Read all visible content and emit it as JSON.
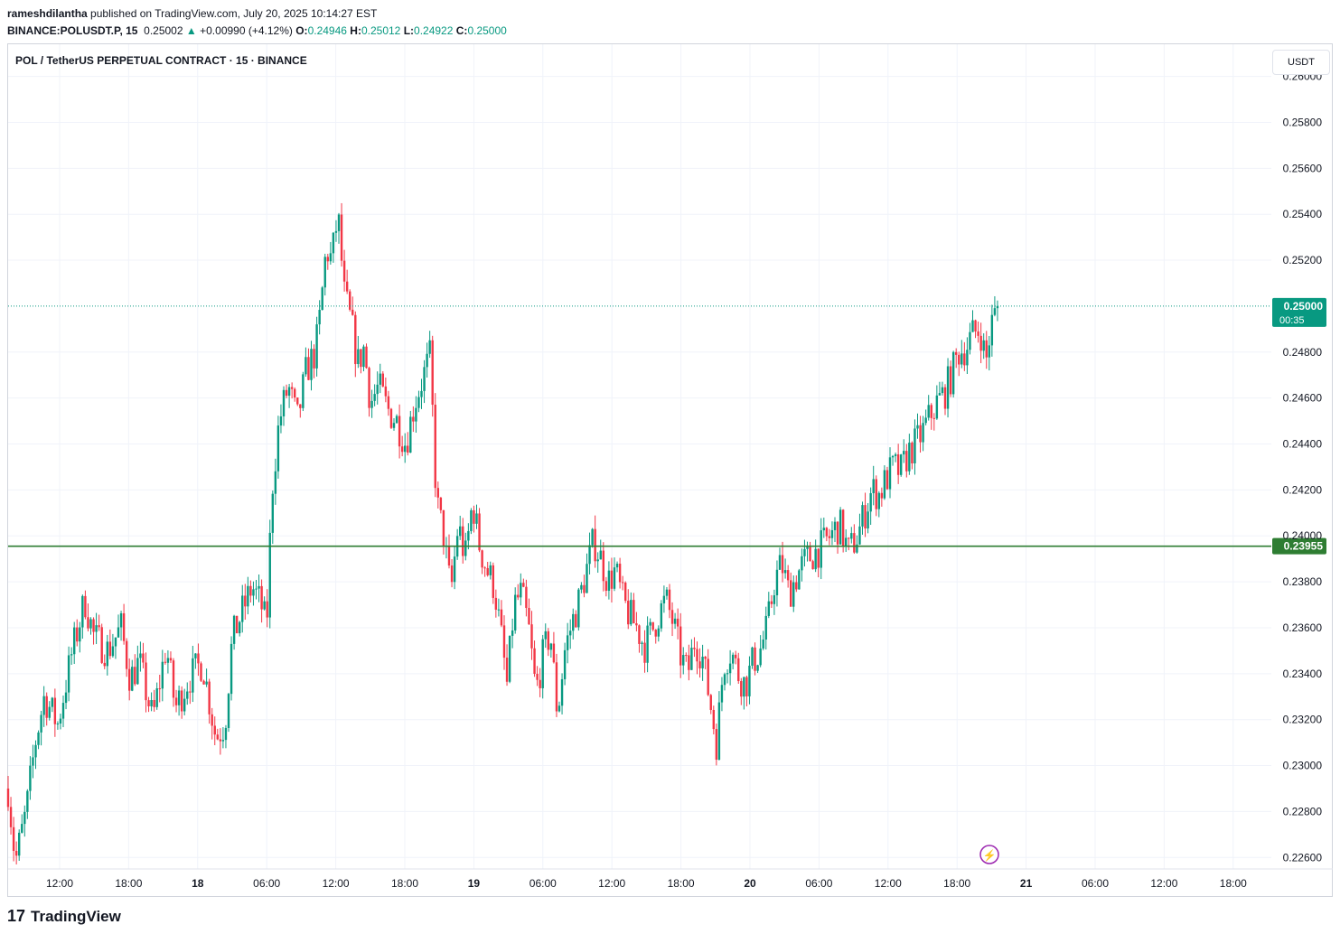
{
  "header": {
    "author": "rameshdilantha",
    "published": "published on TradingView.com, July 20, 2025 10:14:27 EST",
    "symbol": "BINANCE:POLUSDT.P, 15",
    "last": "0.25002",
    "change": "+0.00990 (+4.12%)",
    "o_label": "O:",
    "o": "0.24946",
    "h_label": "H:",
    "h": "0.25012",
    "l_label": "L:",
    "l": "0.24922",
    "c_label": "C:",
    "c": "0.25000"
  },
  "legend_title": "POL / TetherUS PERPETUAL CONTRACT · 15 · BINANCE",
  "currency_button": "USDT",
  "price_label": {
    "value": "0.25000",
    "countdown": "00:35"
  },
  "line_label": "0.23955",
  "footer": {
    "brand": "TradingView",
    "logo_glyph": "17"
  },
  "colors": {
    "up": "#089981",
    "down": "#f23645",
    "line": "#2e7d32",
    "grid": "#f0f3fa",
    "axis_text": "#131722"
  },
  "chart_data": {
    "type": "candlestick",
    "yticks": [
      "0.26000",
      "0.25800",
      "0.25600",
      "0.25400",
      "0.25200",
      "0.24800",
      "0.24600",
      "0.24400",
      "0.24200",
      "0.24000",
      "0.23800",
      "0.23600",
      "0.23400",
      "0.23200",
      "0.23000",
      "0.22800",
      "0.22600"
    ],
    "xticks": [
      "12:00",
      "18:00",
      "18",
      "06:00",
      "12:00",
      "18:00",
      "19",
      "06:00",
      "12:00",
      "18:00",
      "20",
      "06:00",
      "12:00",
      "18:00",
      "21",
      "06:00",
      "12:00",
      "18:00"
    ],
    "ylim": [
      0.2255,
      0.2614
    ],
    "horizontal_line": 0.23955,
    "last_price": 0.25,
    "path_close": [
      [
        0,
        0.229
      ],
      [
        8,
        0.2258
      ],
      [
        20,
        0.228
      ],
      [
        30,
        0.231
      ],
      [
        40,
        0.233
      ],
      [
        55,
        0.2318
      ],
      [
        70,
        0.2348
      ],
      [
        85,
        0.2372
      ],
      [
        95,
        0.2356
      ],
      [
        110,
        0.235
      ],
      [
        125,
        0.236
      ],
      [
        135,
        0.2338
      ],
      [
        145,
        0.2345
      ],
      [
        160,
        0.232
      ],
      [
        175,
        0.2352
      ],
      [
        185,
        0.2325
      ],
      [
        200,
        0.2338
      ],
      [
        215,
        0.2345
      ],
      [
        230,
        0.2312
      ],
      [
        240,
        0.2318
      ],
      [
        248,
        0.2355
      ],
      [
        260,
        0.2368
      ],
      [
        270,
        0.2378
      ],
      [
        280,
        0.237
      ],
      [
        286,
        0.236
      ],
      [
        292,
        0.242
      ],
      [
        300,
        0.245
      ],
      [
        310,
        0.2465
      ],
      [
        320,
        0.245
      ],
      [
        330,
        0.2472
      ],
      [
        340,
        0.248
      ],
      [
        345,
        0.2495
      ],
      [
        352,
        0.2525
      ],
      [
        358,
        0.252
      ],
      [
        365,
        0.254
      ],
      [
        372,
        0.2505
      ],
      [
        380,
        0.2492
      ],
      [
        387,
        0.2475
      ],
      [
        394,
        0.2482
      ],
      [
        401,
        0.2458
      ],
      [
        410,
        0.2465
      ],
      [
        420,
        0.2455
      ],
      [
        430,
        0.245
      ],
      [
        440,
        0.244
      ],
      [
        450,
        0.2458
      ],
      [
        460,
        0.247
      ],
      [
        467,
        0.2478
      ],
      [
        474,
        0.2415
      ],
      [
        482,
        0.24
      ],
      [
        490,
        0.2375
      ],
      [
        498,
        0.2405
      ],
      [
        506,
        0.239
      ],
      [
        514,
        0.2415
      ],
      [
        522,
        0.2395
      ],
      [
        530,
        0.2385
      ],
      [
        538,
        0.2378
      ],
      [
        546,
        0.2355
      ],
      [
        552,
        0.2335
      ],
      [
        560,
        0.237
      ],
      [
        568,
        0.2375
      ],
      [
        576,
        0.236
      ],
      [
        584,
        0.2332
      ],
      [
        592,
        0.2348
      ],
      [
        600,
        0.2358
      ],
      [
        608,
        0.2322
      ],
      [
        616,
        0.235
      ],
      [
        624,
        0.2362
      ],
      [
        632,
        0.2372
      ],
      [
        640,
        0.2385
      ],
      [
        648,
        0.2398
      ],
      [
        656,
        0.239
      ],
      [
        664,
        0.238
      ],
      [
        672,
        0.2385
      ],
      [
        680,
        0.2372
      ],
      [
        688,
        0.2365
      ],
      [
        696,
        0.236
      ],
      [
        704,
        0.2352
      ],
      [
        712,
        0.2358
      ],
      [
        720,
        0.2366
      ],
      [
        728,
        0.2372
      ],
      [
        736,
        0.2362
      ],
      [
        744,
        0.2348
      ],
      [
        752,
        0.234
      ],
      [
        760,
        0.2355
      ],
      [
        768,
        0.2348
      ],
      [
        776,
        0.233
      ],
      [
        784,
        0.231
      ],
      [
        792,
        0.2345
      ],
      [
        800,
        0.235
      ],
      [
        808,
        0.234
      ],
      [
        816,
        0.2335
      ],
      [
        824,
        0.2345
      ],
      [
        832,
        0.235
      ],
      [
        840,
        0.236
      ],
      [
        848,
        0.238
      ],
      [
        856,
        0.2388
      ],
      [
        864,
        0.2375
      ],
      [
        872,
        0.2382
      ],
      [
        880,
        0.2388
      ],
      [
        890,
        0.2392
      ],
      [
        900,
        0.2395
      ],
      [
        910,
        0.24
      ],
      [
        920,
        0.2405
      ],
      [
        930,
        0.2393
      ],
      [
        940,
        0.24
      ],
      [
        948,
        0.241
      ],
      [
        956,
        0.242
      ],
      [
        964,
        0.2418
      ],
      [
        972,
        0.2425
      ],
      [
        980,
        0.243
      ],
      [
        988,
        0.2428
      ],
      [
        996,
        0.2436
      ],
      [
        1004,
        0.244
      ],
      [
        1012,
        0.2445
      ],
      [
        1020,
        0.2452
      ],
      [
        1028,
        0.2458
      ],
      [
        1036,
        0.2462
      ],
      [
        1044,
        0.247
      ],
      [
        1052,
        0.248
      ],
      [
        1060,
        0.2482
      ],
      [
        1068,
        0.2488
      ],
      [
        1076,
        0.249
      ],
      [
        1082,
        0.2475
      ],
      [
        1088,
        0.2492
      ],
      [
        1096,
        0.25
      ]
    ]
  }
}
